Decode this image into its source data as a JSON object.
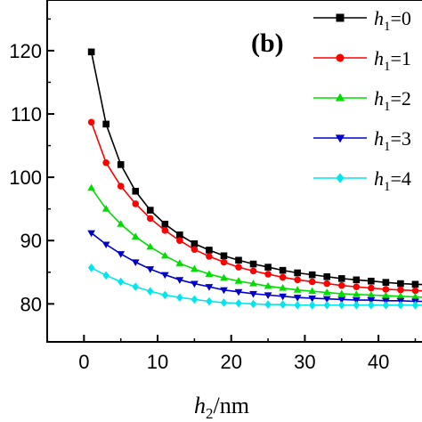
{
  "chart_data": {
    "type": "line",
    "panel_label": "(b)",
    "xlabel_main": "h",
    "xlabel_sub": "2",
    "xlabel_unit": "/nm",
    "xlim": [
      -5,
      47
    ],
    "ylim": [
      74,
      128
    ],
    "xticks": [
      0,
      10,
      20,
      30,
      40
    ],
    "yticks": [
      80,
      90,
      100,
      110,
      120
    ],
    "ytick_labels": [
      "80",
      "90",
      "100",
      "110",
      "120"
    ],
    "x": [
      1,
      3,
      5,
      7,
      9,
      11,
      13,
      15,
      17,
      19,
      21,
      23,
      25,
      27,
      29,
      31,
      33,
      35,
      37,
      39,
      41,
      43,
      45,
      47
    ],
    "series": [
      {
        "name": "h1=0",
        "legend_main": "h",
        "legend_sub": "1",
        "legend_rest": "=0",
        "color": "#000000",
        "marker": "square",
        "values": [
          119.8,
          108.4,
          102.0,
          97.8,
          94.8,
          92.6,
          90.9,
          89.5,
          88.5,
          87.6,
          86.9,
          86.3,
          85.8,
          85.3,
          84.9,
          84.6,
          84.3,
          84.0,
          83.8,
          83.6,
          83.4,
          83.2,
          83.1,
          83.0
        ]
      },
      {
        "name": "h1=1",
        "legend_main": "h",
        "legend_sub": "1",
        "legend_rest": "=1",
        "color": "#ff0000",
        "marker": "circle",
        "values": [
          108.7,
          102.3,
          98.6,
          95.8,
          93.5,
          91.6,
          90.0,
          88.6,
          87.5,
          86.6,
          85.8,
          85.2,
          84.7,
          84.2,
          83.8,
          83.5,
          83.2,
          82.9,
          82.7,
          82.5,
          82.3,
          82.2,
          82.1,
          82.0
        ]
      },
      {
        "name": "h1=2",
        "legend_main": "h",
        "legend_sub": "1",
        "legend_rest": "=2",
        "color": "#00dd00",
        "marker": "triangle-up",
        "values": [
          98.3,
          95.0,
          92.6,
          90.6,
          89.0,
          87.6,
          86.4,
          85.5,
          84.7,
          84.1,
          83.6,
          83.2,
          82.8,
          82.5,
          82.2,
          82.0,
          81.8,
          81.6,
          81.5,
          81.4,
          81.3,
          81.2,
          81.1,
          81.0
        ]
      },
      {
        "name": "h1=3",
        "legend_main": "h",
        "legend_sub": "1",
        "legend_rest": "=3",
        "color": "#0000cc",
        "marker": "triangle-down",
        "values": [
          91.2,
          89.4,
          87.9,
          86.6,
          85.5,
          84.6,
          83.8,
          83.2,
          82.7,
          82.2,
          81.9,
          81.6,
          81.4,
          81.2,
          81.0,
          80.9,
          80.8,
          80.7,
          80.6,
          80.6,
          80.5,
          80.5,
          80.4,
          80.4
        ]
      },
      {
        "name": "h1=4",
        "legend_main": "h",
        "legend_sub": "1",
        "legend_rest": "=4",
        "color": "#00e5ee",
        "marker": "diamond",
        "values": [
          85.7,
          84.5,
          83.5,
          82.7,
          82.0,
          81.4,
          81.0,
          80.7,
          80.4,
          80.2,
          80.1,
          80.0,
          79.9,
          79.9,
          79.8,
          79.8,
          79.8,
          79.8,
          79.8,
          79.8,
          79.8,
          79.8,
          79.8,
          79.8
        ]
      }
    ]
  }
}
